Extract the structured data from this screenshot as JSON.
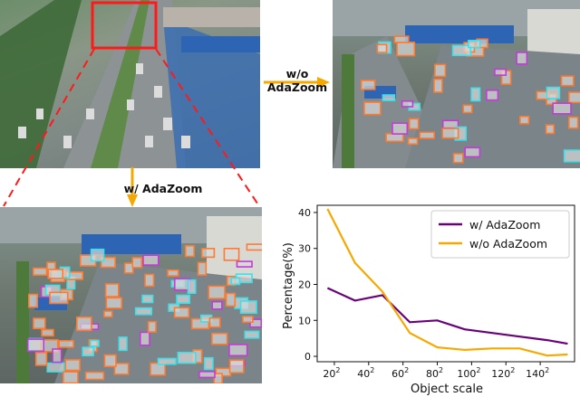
{
  "labels": {
    "without_top": "w/o",
    "without_bottom": "AdaZoom",
    "with": "w/ AdaZoom"
  },
  "colors": {
    "arrow": "#f5a800",
    "zoom_box": "#ff1a1a",
    "det_orange": "#ff7a2f",
    "det_cyan": "#3be0ea",
    "det_purple": "#c23bd6",
    "series_with": "#6a007a",
    "series_without": "#f6a800"
  },
  "icons": [
    "arrow-right-icon",
    "arrow-down-icon"
  ],
  "chart_data": {
    "type": "line",
    "xlabel": "Object scale",
    "ylabel": "Percentage(%)",
    "xticks": [
      {
        "value": 20,
        "label": "20",
        "sup": "2"
      },
      {
        "value": 40,
        "label": "40",
        "sup": "2"
      },
      {
        "value": 60,
        "label": "60",
        "sup": "2"
      },
      {
        "value": 80,
        "label": "80",
        "sup": "2"
      },
      {
        "value": 100,
        "label": "100",
        "sup": "2"
      },
      {
        "value": 120,
        "label": "120",
        "sup": "2"
      },
      {
        "value": 140,
        "label": "140",
        "sup": "2"
      }
    ],
    "yticks": [
      0,
      10,
      20,
      30,
      40
    ],
    "xlim": [
      10,
      160
    ],
    "ylim": [
      -1.5,
      42
    ],
    "legend_position": "top-right",
    "grid": false,
    "x": [
      16,
      32,
      48,
      64,
      80,
      96,
      112,
      128,
      144,
      156
    ],
    "series": [
      {
        "name": "w/ AdaZoom",
        "color": "#6a007a",
        "values": [
          19,
          15.5,
          17,
          9.5,
          10,
          7.5,
          6.5,
          5.5,
          4.5,
          3.5
        ]
      },
      {
        "name": "w/o AdaZoom",
        "color": "#f6a800",
        "values": [
          41,
          26,
          18,
          6.5,
          2.5,
          1.8,
          2.2,
          2.2,
          0.2,
          0.5
        ]
      }
    ]
  }
}
